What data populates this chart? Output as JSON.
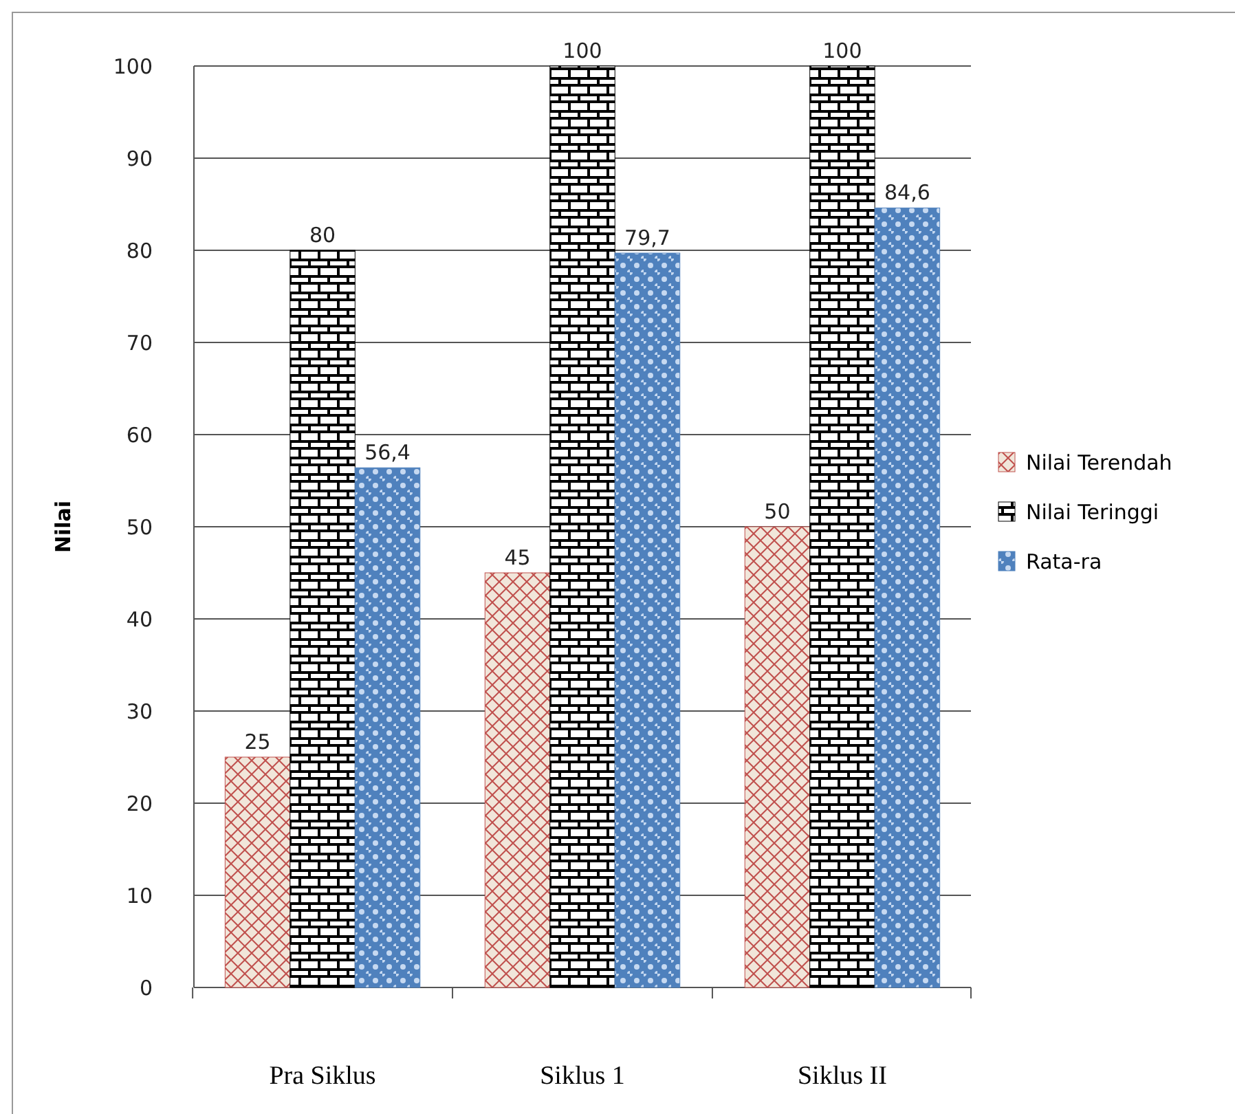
{
  "chart_data": {
    "type": "bar",
    "ylabel": "Nilai",
    "categories": [
      "Pra Siklus",
      "Siklus 1",
      "Siklus II"
    ],
    "series": [
      {
        "name": "Nilai Terendah",
        "color": "#c0504d",
        "values": [
          25,
          45,
          50
        ],
        "value_labels": [
          "25",
          "45",
          "50"
        ]
      },
      {
        "name": "Nilai Teringgi",
        "color": "#000000",
        "values": [
          80,
          100,
          100
        ],
        "value_labels": [
          "80",
          "100",
          "100"
        ]
      },
      {
        "name": "Rata-ra",
        "color": "#4f81bd",
        "values": [
          56.4,
          79.7,
          84.6
        ],
        "value_labels": [
          "56,4",
          "79,7",
          "84,6"
        ]
      }
    ],
    "ylim": [
      0,
      100
    ],
    "yticks": [
      0,
      10,
      20,
      30,
      40,
      50,
      60,
      70,
      80,
      90,
      100
    ],
    "grid": "y",
    "legend": "right"
  }
}
